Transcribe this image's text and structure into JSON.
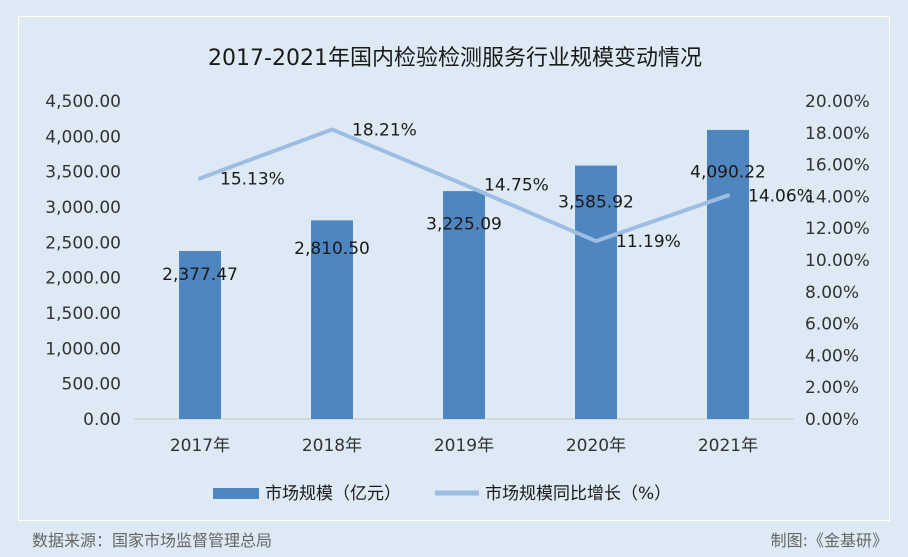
{
  "chart_data": {
    "type": "bar+line",
    "title": "2017-2021年国内检验检测服务行业规模变动情况",
    "categories": [
      "2017年",
      "2018年",
      "2019年",
      "2020年",
      "2021年"
    ],
    "series": [
      {
        "name": "市场规模（亿元）",
        "type": "bar",
        "axis": "left",
        "color": "#4f86c0",
        "values": [
          2377.47,
          2810.5,
          3225.09,
          3585.92,
          4090.22
        ],
        "labels": [
          "2,377.47",
          "2,810.50",
          "3,225.09",
          "3,585.92",
          "4,090.22"
        ]
      },
      {
        "name": "市场规模同比增长（%）",
        "type": "line",
        "axis": "right",
        "color": "#9dbde3",
        "values": [
          15.13,
          18.21,
          14.75,
          11.19,
          14.06
        ],
        "labels": [
          "15.13%",
          "18.21%",
          "14.75%",
          "11.19%",
          "14.06%"
        ]
      }
    ],
    "y_left": {
      "min": 0,
      "max": 4500,
      "ticks": [
        "0.00",
        "500.00",
        "1,000.00",
        "1,500.00",
        "2,000.00",
        "2,500.00",
        "3,000.00",
        "3,500.00",
        "4,000.00",
        "4,500.00"
      ]
    },
    "y_right": {
      "min": 0,
      "max": 20,
      "ticks": [
        "0.00%",
        "2.00%",
        "4.00%",
        "6.00%",
        "8.00%",
        "10.00%",
        "12.00%",
        "14.00%",
        "16.00%",
        "18.00%",
        "20.00%"
      ]
    },
    "grid": false,
    "legend_position": "bottom"
  },
  "footer": {
    "source": "数据来源：国家市场监督管理总局",
    "credit": "制图:《金基研》"
  }
}
